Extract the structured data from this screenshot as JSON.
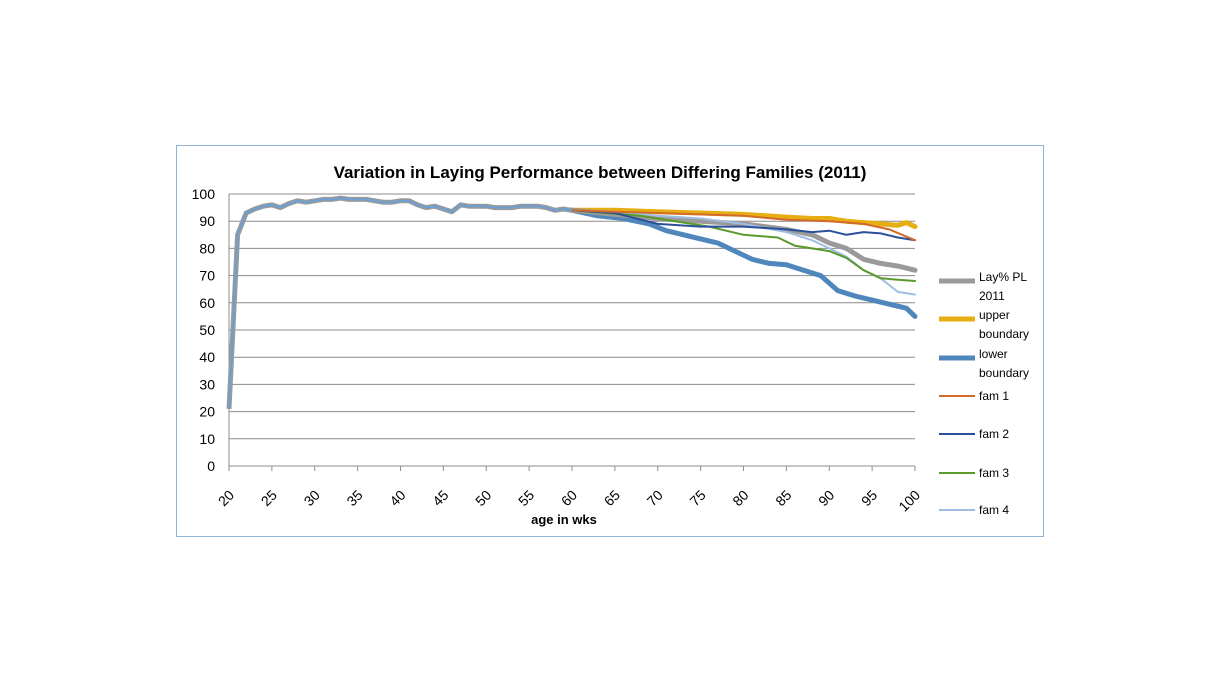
{
  "chart_data": {
    "type": "line",
    "title": "Variation in Laying Performance between Differing Families (2011)",
    "xlabel": "age in wks",
    "ylabel": "",
    "xlim": [
      20,
      100
    ],
    "ylim": [
      0,
      100
    ],
    "x_ticks": [
      20,
      25,
      30,
      35,
      40,
      45,
      50,
      55,
      60,
      65,
      70,
      75,
      80,
      85,
      90,
      95,
      100
    ],
    "y_ticks": [
      0,
      10,
      20,
      30,
      40,
      50,
      60,
      70,
      80,
      90,
      100
    ],
    "grid": "horizontal",
    "legend_position": "right",
    "common_segment": {
      "x": [
        20,
        21,
        22,
        23,
        24,
        25,
        26,
        27,
        28,
        29,
        30,
        31,
        32,
        33,
        34,
        35,
        36,
        37,
        38,
        39,
        40,
        41,
        42,
        43,
        44,
        45,
        46,
        47,
        48,
        49,
        50,
        51,
        52,
        53,
        54,
        55,
        56,
        57,
        58,
        59,
        60
      ],
      "values": [
        21,
        85,
        93,
        94.5,
        95.5,
        96,
        95,
        96.5,
        97.5,
        97,
        97.5,
        98,
        98,
        98.5,
        98,
        98,
        98,
        97.5,
        97,
        97,
        97.5,
        97.5,
        96,
        95,
        95.5,
        94.5,
        93.5,
        96,
        95.5,
        95.5,
        95.5,
        95,
        95,
        95,
        95.5,
        95.5,
        95.5,
        95,
        94,
        94.5,
        94
      ]
    },
    "series": [
      {
        "name": "Lay% PL 2011",
        "label_lines": [
          "Lay% PL",
          "2011"
        ],
        "color": "#9a9a9a",
        "width": 5,
        "x": [
          60,
          65,
          70,
          75,
          80,
          85,
          88,
          90,
          92,
          94,
          96,
          98,
          100
        ],
        "values": [
          94,
          92.5,
          91,
          90,
          89,
          87,
          85,
          82,
          80,
          76,
          74.5,
          73.5,
          72
        ]
      },
      {
        "name": "upper boundary",
        "label_lines": [
          "upper",
          "boundary"
        ],
        "color": "#e6ae12",
        "width": 5,
        "x": [
          60,
          65,
          70,
          75,
          80,
          85,
          88,
          90,
          92,
          94,
          96,
          98,
          99,
          100
        ],
        "values": [
          94,
          94,
          93.5,
          93,
          92.5,
          91.5,
          91,
          91,
          90,
          89.5,
          89,
          88.5,
          89.5,
          88
        ]
      },
      {
        "name": "lower boundary",
        "label_lines": [
          "lower",
          "boundary"
        ],
        "color": "#4f86bb",
        "width": 5,
        "x": [
          60,
          63,
          66,
          69,
          71,
          73,
          75,
          77,
          79,
          81,
          83,
          85,
          87,
          89,
          91,
          93,
          95,
          97,
          99,
          100
        ],
        "values": [
          94,
          92,
          91,
          89,
          86.5,
          85,
          83.5,
          82,
          79,
          76,
          74.5,
          74,
          72,
          70,
          64.5,
          62.5,
          61,
          59.5,
          58,
          55
        ]
      },
      {
        "name": "fam 1",
        "label_lines": [
          "fam 1"
        ],
        "color": "#d16a2a",
        "width": 2,
        "x": [
          60,
          65,
          70,
          75,
          80,
          85,
          90,
          94,
          97,
          100
        ],
        "values": [
          94,
          93.5,
          93,
          92.5,
          92,
          90.5,
          90,
          89,
          87,
          83
        ]
      },
      {
        "name": "fam 2",
        "label_lines": [
          "fam 2"
        ],
        "color": "#2c4f9c",
        "width": 2,
        "x": [
          60,
          65,
          70,
          75,
          80,
          85,
          88,
          90,
          92,
          94,
          96,
          98,
          100
        ],
        "values": [
          94,
          93,
          89,
          88,
          88,
          87,
          86,
          86.5,
          85,
          86,
          85.5,
          84,
          83
        ]
      },
      {
        "name": "fam 3",
        "label_lines": [
          "fam 3"
        ],
        "color": "#5a9a2c",
        "width": 2,
        "x": [
          60,
          64,
          68,
          72,
          76,
          80,
          84,
          86,
          88,
          90,
          92,
          94,
          96,
          98,
          100
        ],
        "values": [
          94,
          93,
          92,
          90,
          88,
          85,
          84,
          81,
          80,
          79,
          76.5,
          72,
          69,
          68.5,
          68
        ]
      },
      {
        "name": "fam 4",
        "label_lines": [
          "fam 4"
        ],
        "color": "#9fbde0",
        "width": 2,
        "x": [
          60,
          65,
          70,
          75,
          80,
          85,
          88,
          90,
          92,
          94,
          96,
          98,
          100
        ],
        "values": [
          94,
          93.5,
          92,
          91,
          89,
          86,
          83,
          80,
          77,
          72,
          69,
          64,
          63
        ]
      }
    ]
  }
}
